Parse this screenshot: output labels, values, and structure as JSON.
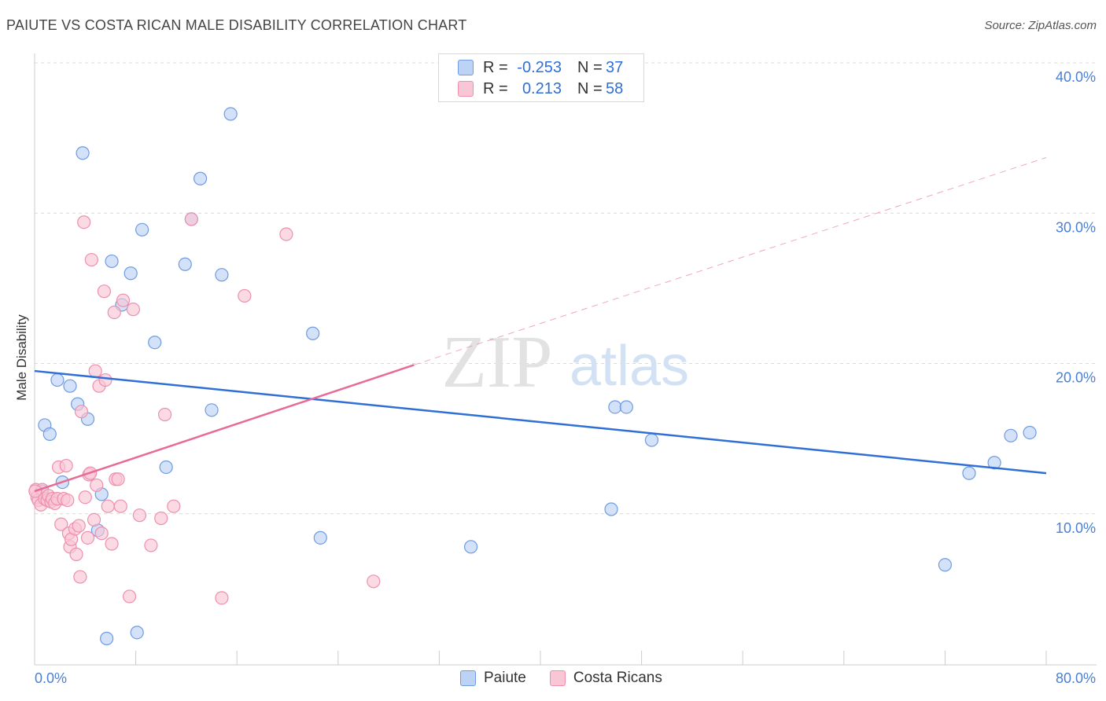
{
  "header": {
    "title": "PAIUTE VS COSTA RICAN MALE DISABILITY CORRELATION CHART",
    "source": "Source: ZipAtlas.com"
  },
  "watermark": {
    "zip": "ZIP",
    "atlas": "atlas"
  },
  "legend_top": {
    "rows": [
      {
        "r_label": "R =",
        "r_value": "-0.253",
        "n_label": "N =",
        "n_value": "37"
      },
      {
        "r_label": "R =",
        "r_value": "0.213",
        "n_label": "N =",
        "n_value": "58"
      }
    ]
  },
  "legend_bottom": {
    "items": [
      "Paiute",
      "Costa Ricans"
    ]
  },
  "colors": {
    "blue": "#2f6fd6",
    "blue_fill": "#bcd3f5",
    "pink": "#e86a96",
    "pink_fill": "#f9c6d6",
    "grid": "#d9d9d9",
    "axis_label": "#4a7fd4"
  },
  "chart_data": {
    "type": "scatter",
    "title": "PAIUTE VS COSTA RICAN MALE DISABILITY CORRELATION CHART",
    "xlabel": "",
    "ylabel": "Male Disability",
    "xlim": [
      0,
      80
    ],
    "ylim": [
      0,
      40
    ],
    "x_tick_labels": [
      "0.0%",
      "80.0%"
    ],
    "y_ticks": [
      10,
      20,
      30,
      40
    ],
    "y_tick_labels": [
      "10.0%",
      "20.0%",
      "30.0%",
      "40.0%"
    ],
    "series": [
      {
        "name": "Paiute",
        "color": "blue",
        "r": -0.253,
        "n": 37,
        "points": [
          [
            0.6,
            11.5
          ],
          [
            0.8,
            15.9
          ],
          [
            1.2,
            15.3
          ],
          [
            1.8,
            18.9
          ],
          [
            2.2,
            12.1
          ],
          [
            2.8,
            18.5
          ],
          [
            3.4,
            17.3
          ],
          [
            3.8,
            34.0
          ],
          [
            4.2,
            16.3
          ],
          [
            5.0,
            8.9
          ],
          [
            5.3,
            11.3
          ],
          [
            5.7,
            1.7
          ],
          [
            6.1,
            26.8
          ],
          [
            6.9,
            23.9
          ],
          [
            7.6,
            26.0
          ],
          [
            8.1,
            2.1
          ],
          [
            8.5,
            28.9
          ],
          [
            9.5,
            21.4
          ],
          [
            10.4,
            13.1
          ],
          [
            11.9,
            26.6
          ],
          [
            12.4,
            29.6
          ],
          [
            13.1,
            32.3
          ],
          [
            14.0,
            16.9
          ],
          [
            14.8,
            25.9
          ],
          [
            15.5,
            36.6
          ],
          [
            22.0,
            22.0
          ],
          [
            22.6,
            8.4
          ],
          [
            34.5,
            7.8
          ],
          [
            45.6,
            10.3
          ],
          [
            45.9,
            17.1
          ],
          [
            46.8,
            17.1
          ],
          [
            48.8,
            14.9
          ],
          [
            72.0,
            6.6
          ],
          [
            73.9,
            12.7
          ],
          [
            75.9,
            13.4
          ],
          [
            77.2,
            15.2
          ],
          [
            78.7,
            15.4
          ]
        ],
        "trend": {
          "x": [
            0,
            80
          ],
          "y": [
            19.5,
            12.7
          ],
          "style": "solid"
        }
      },
      {
        "name": "Costa Ricans",
        "color": "pink",
        "r": 0.213,
        "n": 58,
        "points": [
          [
            0.1,
            11.6
          ],
          [
            0.2,
            11.1
          ],
          [
            0.3,
            10.9
          ],
          [
            0.5,
            10.6
          ],
          [
            0.6,
            11.6
          ],
          [
            0.8,
            11.0
          ],
          [
            1.0,
            10.9
          ],
          [
            1.1,
            11.2
          ],
          [
            1.3,
            10.8
          ],
          [
            1.4,
            11.0
          ],
          [
            1.6,
            10.7
          ],
          [
            1.8,
            11.0
          ],
          [
            1.9,
            13.1
          ],
          [
            2.1,
            9.3
          ],
          [
            2.3,
            11.0
          ],
          [
            2.5,
            13.2
          ],
          [
            2.6,
            10.9
          ],
          [
            2.7,
            8.7
          ],
          [
            2.8,
            7.8
          ],
          [
            2.9,
            8.3
          ],
          [
            3.2,
            9.0
          ],
          [
            3.3,
            7.3
          ],
          [
            3.5,
            9.2
          ],
          [
            3.6,
            5.8
          ],
          [
            3.7,
            16.8
          ],
          [
            3.9,
            29.4
          ],
          [
            4.0,
            11.1
          ],
          [
            4.2,
            8.4
          ],
          [
            4.3,
            12.6
          ],
          [
            4.4,
            12.7
          ],
          [
            4.5,
            26.9
          ],
          [
            4.7,
            9.6
          ],
          [
            4.8,
            19.5
          ],
          [
            4.9,
            11.9
          ],
          [
            5.1,
            18.5
          ],
          [
            5.3,
            8.7
          ],
          [
            5.5,
            24.8
          ],
          [
            5.6,
            18.9
          ],
          [
            5.8,
            10.5
          ],
          [
            6.1,
            8.0
          ],
          [
            6.3,
            23.4
          ],
          [
            6.4,
            12.3
          ],
          [
            6.6,
            12.3
          ],
          [
            6.8,
            10.5
          ],
          [
            7.0,
            24.2
          ],
          [
            7.5,
            4.5
          ],
          [
            7.8,
            23.6
          ],
          [
            8.3,
            9.9
          ],
          [
            9.2,
            7.9
          ],
          [
            10.0,
            9.7
          ],
          [
            10.3,
            16.6
          ],
          [
            11.0,
            10.5
          ],
          [
            12.4,
            29.6
          ],
          [
            14.8,
            4.4
          ],
          [
            16.6,
            24.5
          ],
          [
            19.9,
            28.6
          ],
          [
            26.8,
            5.5
          ],
          [
            0.05,
            11.5
          ]
        ],
        "trend": {
          "x": [
            0,
            30
          ],
          "y": [
            11.5,
            19.9
          ],
          "style": "solid"
        },
        "trend_extension": {
          "x": [
            30,
            80
          ],
          "y": [
            19.9,
            33.7
          ],
          "style": "dashed"
        }
      }
    ]
  }
}
